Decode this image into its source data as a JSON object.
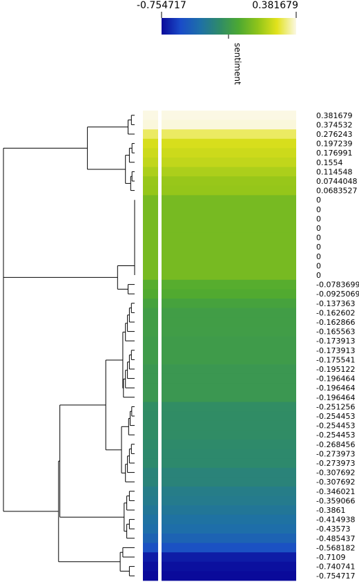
{
  "chart_data": {
    "type": "heatmap",
    "color_scale": {
      "title": "sentiment",
      "min_label": "-0.754717",
      "max_label": "0.381679",
      "min": -0.754717,
      "max": 0.381679,
      "colors": [
        "#0a0a9a",
        "#1a4cc8",
        "#1e6fa8",
        "#2e8a6a",
        "#4ca832",
        "#8fc41a",
        "#e2e21c",
        "#fbf8e4"
      ]
    },
    "row_labels": [
      "0.381679",
      "0.374532",
      "0.276243",
      "0.197239",
      "0.176991",
      "0.1554",
      "0.114548",
      "0.0744048",
      "0.0683527",
      "0",
      "0",
      "0",
      "0",
      "0",
      "0",
      "0",
      "0",
      "0",
      "-0.0783699",
      "-0.0925069",
      "-0.137363",
      "-0.162602",
      "-0.162866",
      "-0.165563",
      "-0.173913",
      "-0.173913",
      "-0.175541",
      "-0.195122",
      "-0.196464",
      "-0.196464",
      "-0.196464",
      "-0.251256",
      "-0.254453",
      "-0.254453",
      "-0.254453",
      "-0.268456",
      "-0.273973",
      "-0.273973",
      "-0.307692",
      "-0.307692",
      "-0.346021",
      "-0.359066",
      "-0.3861",
      "-0.414938",
      "-0.43573",
      "-0.485437",
      "-0.568182",
      "-0.7109",
      "-0.740741",
      "-0.754717"
    ],
    "values": [
      0.381679,
      0.374532,
      0.276243,
      0.197239,
      0.176991,
      0.1554,
      0.114548,
      0.0744048,
      0.0683527,
      0,
      0,
      0,
      0,
      0,
      0,
      0,
      0,
      0,
      -0.0783699,
      -0.0925069,
      -0.137363,
      -0.162602,
      -0.162866,
      -0.165563,
      -0.173913,
      -0.173913,
      -0.175541,
      -0.195122,
      -0.196464,
      -0.196464,
      -0.196464,
      -0.251256,
      -0.254453,
      -0.254453,
      -0.254453,
      -0.268456,
      -0.273973,
      -0.273973,
      -0.307692,
      -0.307692,
      -0.346021,
      -0.359066,
      -0.3861,
      -0.414938,
      -0.43573,
      -0.485437,
      -0.568182,
      -0.7109,
      -0.740741,
      -0.754717
    ],
    "dendrogram": "hierarchical clustering of rows (left side)"
  }
}
